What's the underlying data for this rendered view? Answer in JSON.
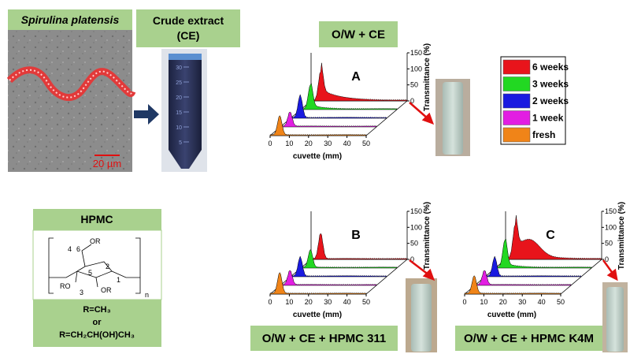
{
  "photo": {
    "title": "Spirulina platensis",
    "scale_bar": "20 µm"
  },
  "extract": {
    "title_lines": [
      "Crude extract",
      "(CE)"
    ],
    "tube_marks": [
      30,
      25,
      20,
      15,
      10,
      5
    ]
  },
  "legend": [
    {
      "label": "6 weeks",
      "color": "#e8141b"
    },
    {
      "label": "3 weeks",
      "color": "#22d822"
    },
    {
      "label": "2 weeks",
      "color": "#1a1ae0"
    },
    {
      "label": "1 week",
      "color": "#e21ee2"
    },
    {
      "label": "fresh",
      "color": "#f08418"
    }
  ],
  "panels": [
    {
      "letter": "A",
      "caption": "O/W + CE",
      "x_label": "cuvette (mm)",
      "y_label": "Transmittance (%)",
      "xticks": [
        0,
        10,
        20,
        30,
        40,
        50
      ],
      "yticks": [
        0,
        50,
        100,
        150
      ]
    },
    {
      "letter": "B",
      "caption": "O/W + CE + HPMC 311",
      "x_label": "cuvette (mm)",
      "y_label": "Transmittance (%)",
      "xticks": [
        0,
        10,
        20,
        30,
        40,
        50
      ],
      "yticks": [
        0,
        50,
        100,
        150
      ]
    },
    {
      "letter": "C",
      "caption": "O/W + CE + HPMC K4M",
      "x_label": "cuvette (mm)",
      "y_label": "Transmittance (%)",
      "xticks": [
        0,
        10,
        20,
        30,
        40,
        50
      ],
      "yticks": [
        0,
        50,
        100,
        150
      ]
    }
  ],
  "hpmc": {
    "title": "HPMC",
    "structure_labels": [
      "4",
      "6",
      "OR",
      "5",
      "2",
      "RO",
      "3",
      "OR",
      "1",
      "n"
    ],
    "substituents": [
      "R=CH₃",
      "or",
      "R=CH₂CH(OH)CH₃"
    ]
  }
}
